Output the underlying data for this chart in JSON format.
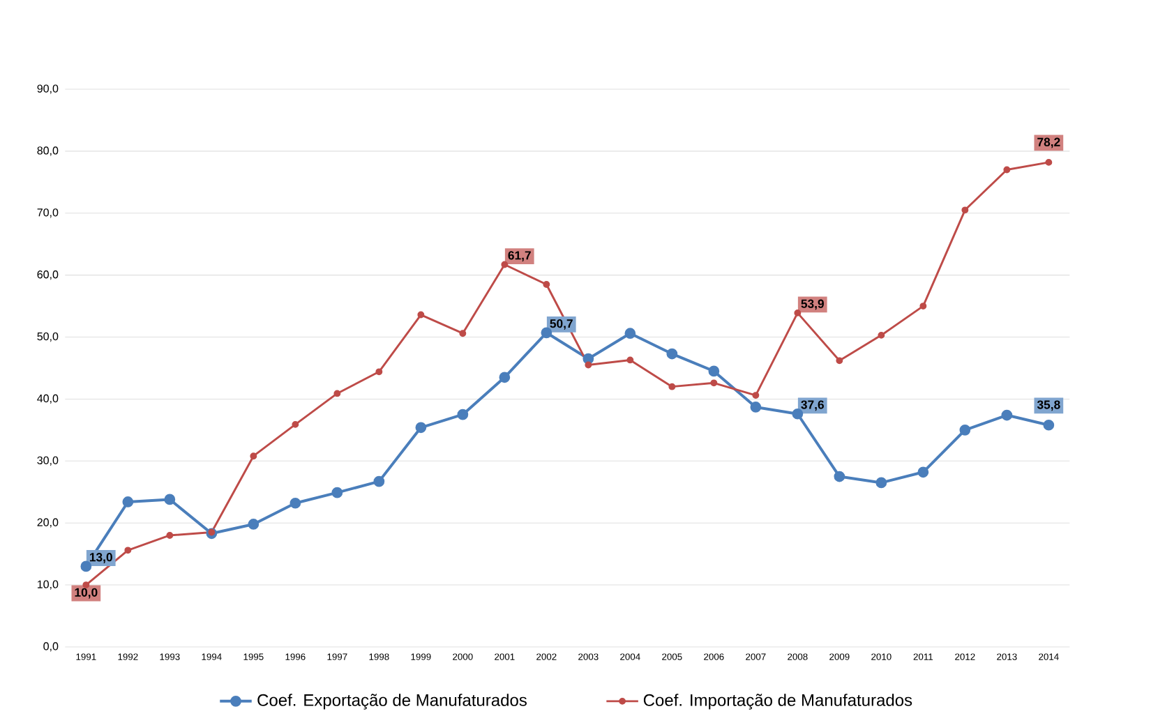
{
  "chart_data": {
    "type": "line",
    "categories": [
      "1991",
      "1992",
      "1993",
      "1994",
      "1995",
      "1996",
      "1997",
      "1998",
      "1999",
      "2000",
      "2001",
      "2002",
      "2003",
      "2004",
      "2005",
      "2006",
      "2007",
      "2008",
      "2009",
      "2010",
      "2011",
      "2012",
      "2013",
      "2014"
    ],
    "series": [
      {
        "name": "Coef. Exportação de Manufaturados",
        "color": "#4a7ebb",
        "values": [
          13.0,
          23.4,
          23.8,
          18.3,
          19.8,
          23.2,
          24.9,
          26.7,
          35.4,
          37.5,
          43.5,
          50.7,
          46.5,
          50.6,
          47.3,
          44.5,
          38.7,
          37.6,
          27.5,
          26.5,
          28.2,
          35.0,
          37.4,
          35.8
        ],
        "value_labels": [
          "13,0",
          null,
          null,
          null,
          null,
          null,
          null,
          null,
          null,
          null,
          null,
          "50,7",
          null,
          null,
          null,
          null,
          null,
          "37,6",
          null,
          null,
          null,
          null,
          null,
          "35,8"
        ]
      },
      {
        "name": "Coef. Importação de Manufaturados",
        "color": "#be4b48",
        "values": [
          10.0,
          15.6,
          18.0,
          18.5,
          30.8,
          35.9,
          40.9,
          44.4,
          53.6,
          50.6,
          61.7,
          58.5,
          45.5,
          46.3,
          42.0,
          42.6,
          40.6,
          53.9,
          46.2,
          50.3,
          55.0,
          70.5,
          77.0,
          78.2
        ],
        "value_labels": [
          "10,0",
          null,
          null,
          null,
          null,
          null,
          null,
          null,
          null,
          null,
          "61,7",
          null,
          null,
          null,
          null,
          null,
          null,
          "53,9",
          null,
          null,
          null,
          null,
          null,
          "78,2"
        ]
      }
    ],
    "ylim": [
      0,
      90
    ],
    "yticks": [
      {
        "value": 0,
        "label": "0,0"
      },
      {
        "value": 10,
        "label": "10,0"
      },
      {
        "value": 20,
        "label": "20,0"
      },
      {
        "value": 30,
        "label": "30,0"
      },
      {
        "value": 40,
        "label": "40,0"
      },
      {
        "value": 50,
        "label": "50,0"
      },
      {
        "value": 60,
        "label": "60,0"
      },
      {
        "value": 70,
        "label": "70,0"
      },
      {
        "value": 80,
        "label": "80,0"
      },
      {
        "value": 90,
        "label": "90,0"
      }
    ],
    "grid": "y",
    "legend": "bottom",
    "marker": "circle",
    "line_style": "solid"
  }
}
